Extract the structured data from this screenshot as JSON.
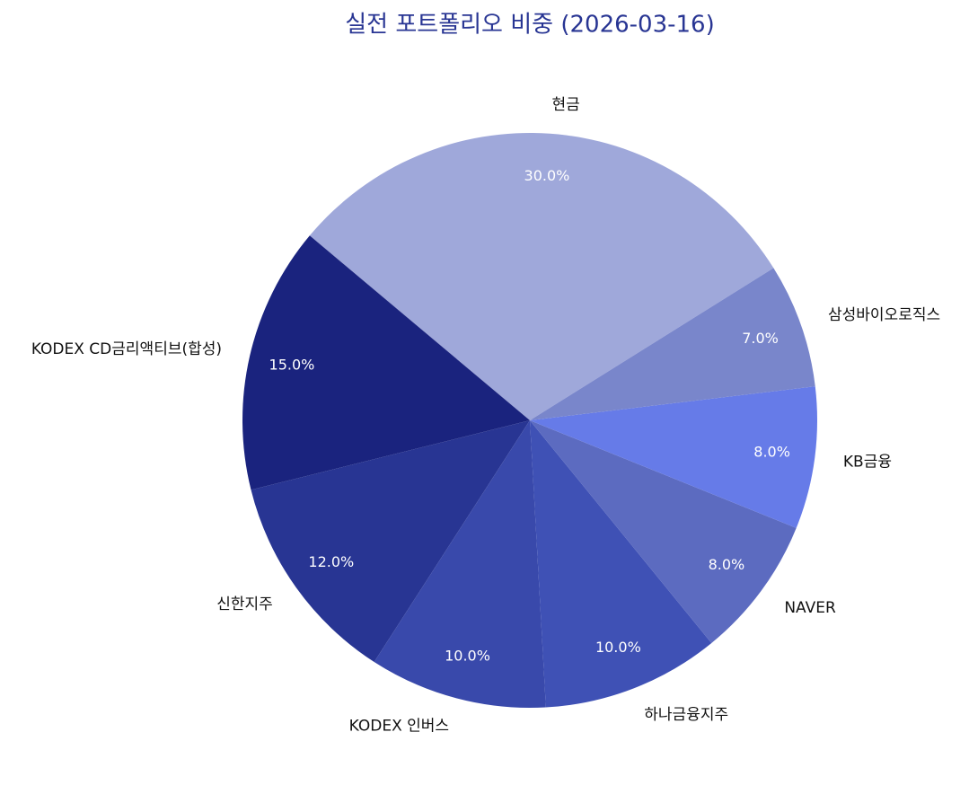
{
  "chart_data": {
    "type": "pie",
    "title": "실전 포트폴리오 비중 (2026-03-16)",
    "categories": [
      "현금",
      "KODEX CD금리액티브(합성)",
      "신한지주",
      "KODEX 인버스",
      "하나금융지주",
      "NAVER",
      "KB금융",
      "삼성바이오로직스"
    ],
    "values": [
      30,
      15,
      12,
      10,
      10,
      8,
      8,
      7
    ],
    "value_labels": [
      "30.0%",
      "15.0%",
      "12.0%",
      "10.0%",
      "10.0%",
      "8.0%",
      "8.0%",
      "7.0%"
    ],
    "colors": [
      "#9fa8da",
      "#1a237e",
      "#283593",
      "#3949ab",
      "#3f51b5",
      "#5c6bc0",
      "#667be8",
      "#7986cb"
    ]
  }
}
